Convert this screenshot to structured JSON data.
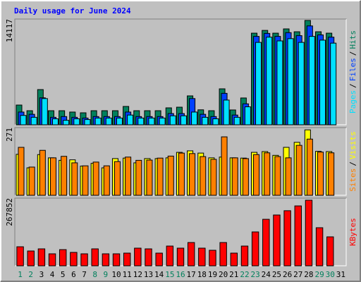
{
  "title": "Daily usage for June 2024",
  "legend_separator": "/",
  "chart_data": [
    {
      "type": "bar",
      "ylim": [
        0,
        14117
      ],
      "yticks": [
        14117
      ],
      "series": [
        {
          "name": "Hits",
          "color": "#00805c",
          "values": [
            2635,
            1880,
            4700,
            1880,
            1880,
            1700,
            1600,
            1880,
            1880,
            1880,
            2450,
            1880,
            1880,
            1880,
            2260,
            2350,
            3860,
            2000,
            1880,
            4800,
            1980,
            3580,
            12230,
            12600,
            12230,
            12800,
            12420,
            13930,
            12420,
            12230,
            0
          ]
        },
        {
          "name": "Files",
          "color": "#0040ff",
          "values": [
            1700,
            1400,
            3600,
            1000,
            1100,
            1000,
            900,
            1100,
            1100,
            1100,
            1700,
            1100,
            1100,
            1100,
            1500,
            1500,
            3500,
            1400,
            1100,
            4200,
            1300,
            2800,
            11800,
            12200,
            11800,
            12300,
            11900,
            13200,
            12000,
            11700,
            0
          ]
        },
        {
          "name": "Pages",
          "color": "#00e0ff",
          "values": [
            1250,
            1000,
            3500,
            800,
            600,
            800,
            700,
            900,
            900,
            900,
            1300,
            900,
            900,
            900,
            1200,
            1200,
            1700,
            1000,
            800,
            3300,
            1000,
            2400,
            11000,
            11700,
            11200,
            11500,
            11000,
            11800,
            11300,
            10900,
            0
          ]
        }
      ]
    },
    {
      "type": "bar",
      "ylim": [
        0,
        271
      ],
      "yticks": [
        271
      ],
      "series": [
        {
          "name": "Visits",
          "color": "#ffff00",
          "values": [
            164,
            110,
            163,
            150,
            140,
            142,
            117,
            128,
            110,
            147,
            149,
            130,
            147,
            147,
            150,
            172,
            178,
            169,
            150,
            153,
            150,
            149,
            172,
            175,
            160,
            192,
            212,
            262,
            176,
            175,
            0
          ]
        },
        {
          "name": "Sites",
          "color": "#ff8000",
          "values": [
            192,
            113,
            180,
            150,
            156,
            130,
            118,
            133,
            118,
            135,
            153,
            140,
            141,
            149,
            157,
            169,
            167,
            155,
            144,
            234,
            150,
            147,
            163,
            170,
            155,
            150,
            200,
            225,
            173,
            170,
            0
          ]
        }
      ]
    },
    {
      "type": "bar",
      "ylim": [
        0,
        267852
      ],
      "yticks": [
        267852
      ],
      "categories": [
        "1",
        "2",
        "3",
        "4",
        "5",
        "6",
        "7",
        "8",
        "9",
        "10",
        "11",
        "12",
        "13",
        "14",
        "15",
        "16",
        "17",
        "18",
        "19",
        "20",
        "21",
        "22",
        "23",
        "24",
        "25",
        "26",
        "27",
        "28",
        "29",
        "30",
        "31"
      ],
      "category_colors": [
        "#00805c",
        "#00805c",
        "#000000",
        "#000000",
        "#000000",
        "#000000",
        "#000000",
        "#00805c",
        "#00805c",
        "#000000",
        "#000000",
        "#000000",
        "#000000",
        "#000000",
        "#00805c",
        "#00805c",
        "#000000",
        "#000000",
        "#000000",
        "#000000",
        "#000000",
        "#00805c",
        "#00805c",
        "#000000",
        "#000000",
        "#000000",
        "#000000",
        "#000000",
        "#00805c",
        "#00805c",
        "#000000"
      ],
      "series": [
        {
          "name": "KBytes",
          "color": "#ff0000",
          "values": [
            75300,
            58600,
            67000,
            47400,
            64000,
            53000,
            47400,
            67000,
            47400,
            47400,
            50200,
            69800,
            67000,
            50200,
            78100,
            69800,
            92100,
            69800,
            61400,
            92100,
            50200,
            78100,
            134000,
            184000,
            201000,
            218000,
            237000,
            259500,
            150700,
            114500,
            0
          ]
        }
      ]
    }
  ]
}
